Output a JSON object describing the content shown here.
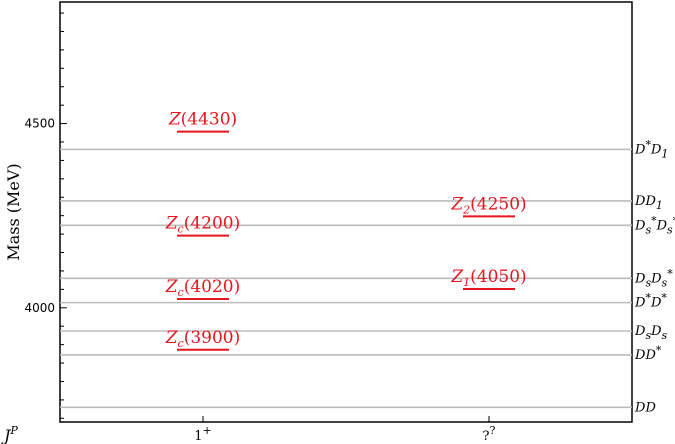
{
  "chart_data": {
    "type": "scatter",
    "title": "",
    "ylabel": "Mass (MeV)",
    "xlabel": "J^P",
    "ylim": [
      3690,
      4830
    ],
    "yticks": [
      4000,
      4500
    ],
    "grid": false,
    "categories": [
      {
        "label": "1",
        "sup": "+"
      },
      {
        "label": "?",
        "sup": "?"
      }
    ],
    "threshold_color": "#bbbbbb",
    "state_color": "#e8141c",
    "thresholds": [
      {
        "label": "D*D1",
        "base": "D",
        "parts": [
          {
            "t": "D"
          },
          {
            "t": "*",
            "pos": "sup"
          },
          {
            "t": "D"
          },
          {
            "t": "1",
            "pos": "sub"
          }
        ],
        "mass": 4430
      },
      {
        "label": "DD1",
        "parts": [
          {
            "t": "D"
          },
          {
            "t": "D"
          },
          {
            "t": "1",
            "pos": "sub"
          }
        ],
        "mass": 4290
      },
      {
        "label": "Ds*Ds*",
        "parts": [
          {
            "t": "D"
          },
          {
            "t": "s",
            "pos": "sub"
          },
          {
            "t": "*",
            "pos": "sup"
          },
          {
            "t": "D"
          },
          {
            "t": "s",
            "pos": "sub"
          },
          {
            "t": "*",
            "pos": "sup"
          }
        ],
        "mass": 4224
      },
      {
        "label": "DsDs*",
        "parts": [
          {
            "t": "D"
          },
          {
            "t": "s",
            "pos": "sub"
          },
          {
            "t": "D"
          },
          {
            "t": "s",
            "pos": "sub"
          },
          {
            "t": "*",
            "pos": "sup"
          }
        ],
        "mass": 4080
      },
      {
        "label": "D*D*",
        "parts": [
          {
            "t": "D"
          },
          {
            "t": "*",
            "pos": "sup"
          },
          {
            "t": "D"
          },
          {
            "t": "*",
            "pos": "sup"
          }
        ],
        "mass": 4014
      },
      {
        "label": "DsDs",
        "parts": [
          {
            "t": "D"
          },
          {
            "t": "s",
            "pos": "sub"
          },
          {
            "t": "D"
          },
          {
            "t": "s",
            "pos": "sub"
          }
        ],
        "mass": 3937
      },
      {
        "label": "DD*",
        "parts": [
          {
            "t": "D"
          },
          {
            "t": "D"
          },
          {
            "t": "*",
            "pos": "sup"
          }
        ],
        "mass": 3872
      },
      {
        "label": "DD",
        "parts": [
          {
            "t": "D"
          },
          {
            "t": "D"
          }
        ],
        "mass": 3730
      }
    ],
    "series": [
      {
        "category_index": 0,
        "points": [
          {
            "name": "Z",
            "sub": "",
            "paren": "(4430)",
            "mass": 4478
          },
          {
            "name": "Z",
            "sub": "c",
            "paren": "(4200)",
            "mass": 4196
          },
          {
            "name": "Z",
            "sub": "c",
            "paren": "(4020)",
            "mass": 4024
          },
          {
            "name": "Z",
            "sub": "c",
            "paren": "(3900)",
            "mass": 3886
          }
        ]
      },
      {
        "category_index": 1,
        "points": [
          {
            "name": "Z",
            "sub": "2",
            "paren": "(4250)",
            "mass": 4248
          },
          {
            "name": "Z",
            "sub": "1",
            "paren": "(4050)",
            "mass": 4051
          }
        ]
      }
    ]
  }
}
